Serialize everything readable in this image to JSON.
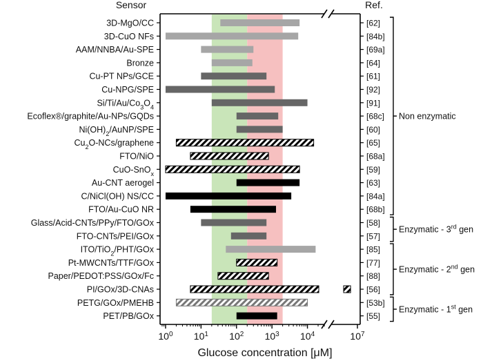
{
  "chart_data": {
    "type": "bar",
    "orientation": "horizontal-range",
    "headers": {
      "sensor": "Sensor",
      "ref": "Ref."
    },
    "xlabel": "Glucose concentration [μM]",
    "xscale": "log",
    "xlim": [
      0.7,
      10000000
    ],
    "axis_break": [
      30000,
      700000
    ],
    "x_ticks": [
      {
        "base": "10",
        "exp": "0",
        "value": 1
      },
      {
        "base": "10",
        "exp": "1",
        "value": 10
      },
      {
        "base": "10",
        "exp": "2",
        "value": 100
      },
      {
        "base": "10",
        "exp": "3",
        "value": 1000
      },
      {
        "base": "10",
        "exp": "4",
        "value": 10000
      },
      {
        "base": "10",
        "exp": "7",
        "value": 10000000
      }
    ],
    "bands": [
      {
        "from": 20,
        "to": 200,
        "color": "#c9e5b9"
      },
      {
        "from": 200,
        "to": 2000,
        "color": "#f6c0c0"
      }
    ],
    "styles": {
      "lightgray": {
        "fill": "#a6a6a6"
      },
      "darkgray": {
        "fill": "#666666"
      },
      "black": {
        "fill": "#000000"
      },
      "hatch-black": {
        "pattern": "hatch",
        "stroke": "#000000"
      },
      "hatch-gray": {
        "pattern": "hatch",
        "stroke": "#777777"
      }
    },
    "rows": [
      {
        "label": "3D-MgO/CC",
        "ref": "[62]",
        "min": 35,
        "max": 6000,
        "style": "lightgray"
      },
      {
        "label": "3D-CuO NFs",
        "ref": "[84b]",
        "min": 1,
        "max": 5500,
        "style": "lightgray"
      },
      {
        "label": "AAM/NNBA/Au-SPE",
        "ref": "[69a]",
        "min": 10,
        "max": 300,
        "style": "lightgray"
      },
      {
        "label": "Bronze",
        "ref": "[64]",
        "min": 20,
        "max": 280,
        "style": "lightgray"
      },
      {
        "label": "Cu-PT NPs/GCE",
        "ref": "[61]",
        "min": 10,
        "max": 700,
        "style": "darkgray"
      },
      {
        "label": "Cu-NPG/SPE",
        "ref": "[92]",
        "min": 1,
        "max": 1200,
        "style": "darkgray"
      },
      {
        "label_parts": [
          [
            "Si/Ti/Au/Co",
            ""
          ],
          [
            "3",
            "sub"
          ],
          [
            "O",
            ""
          ],
          [
            "4",
            "sub"
          ]
        ],
        "ref": "[91]",
        "min": 20,
        "max": 10000,
        "style": "darkgray"
      },
      {
        "label": "Ecoflex®/graphite/Au-NPs/GQDs",
        "ref": "[68c]",
        "min": 100,
        "max": 1500,
        "style": "darkgray"
      },
      {
        "label_parts": [
          [
            "Ni(OH)",
            ""
          ],
          [
            "2",
            "sub"
          ],
          [
            "/AuNP/SPE",
            ""
          ]
        ],
        "ref": "[60]",
        "min": 100,
        "max": 2000,
        "style": "darkgray"
      },
      {
        "label_parts": [
          [
            "Cu",
            ""
          ],
          [
            "2",
            "sub"
          ],
          [
            "O-NCs/graphene",
            ""
          ]
        ],
        "ref": "[65]",
        "min": 2,
        "max": 15000,
        "style": "hatch-black"
      },
      {
        "label": "FTO/NiO",
        "ref": "[68a]",
        "min": 5,
        "max": 800,
        "style": "hatch-black"
      },
      {
        "label_parts": [
          [
            "CuO-SnO",
            ""
          ],
          [
            "x",
            "sub"
          ]
        ],
        "ref": "[59]",
        "min": 1,
        "max": 6000,
        "style": "hatch-black"
      },
      {
        "label": "Au-CNT aerogel",
        "ref": "[63]",
        "min": 100,
        "max": 6000,
        "style": "black"
      },
      {
        "label": "C/NiCl(OH) NS/CC",
        "ref": "[84a]",
        "min": 1,
        "max": 3500,
        "style": "black"
      },
      {
        "label": "FTO/Au-CuO NR",
        "ref": "[68b]",
        "min": 5,
        "max": 1300,
        "style": "black"
      },
      {
        "label": "Glass/Acid-CNTs/PPy/FTO/GOx",
        "ref": "[58]",
        "min": 10,
        "max": 700,
        "style": "darkgray"
      },
      {
        "label": "FTO-CNTs/PEI/GOx",
        "ref": "[57]",
        "min": 70,
        "max": 700,
        "style": "darkgray"
      },
      {
        "label_parts": [
          [
            "ITO/TiO",
            ""
          ],
          [
            "2",
            "sub"
          ],
          [
            "/PHT/GOx",
            ""
          ]
        ],
        "ref": "[85]",
        "min": 50,
        "max": 17000,
        "style": "lightgray"
      },
      {
        "label": "Pt-MWCNTs/TTF/GOx",
        "ref": "[77]",
        "min": 100,
        "max": 1400,
        "style": "hatch-black"
      },
      {
        "label": "Paper/PEDOT:PSS/GOx/Fc",
        "ref": "[88]",
        "min": 30,
        "max": 800,
        "style": "hatch-black"
      },
      {
        "label": "PI/GOx/3D-CNAs",
        "ref": "[56]",
        "min": 5,
        "max": 5000000,
        "style": "hatch-black"
      },
      {
        "label": "PETG/GOx/PMEHB",
        "ref": "[53b]",
        "min": 2,
        "max": 10000,
        "style": "hatch-gray"
      },
      {
        "label": "PET/PB/GOx",
        "ref": "[55]",
        "min": 100,
        "max": 1400,
        "style": "black"
      }
    ],
    "groups": [
      {
        "label_parts": [
          [
            "Non enzymatic",
            ""
          ]
        ],
        "first": 0,
        "last": 14
      },
      {
        "label_parts": [
          [
            "Enzymatic - 3",
            ""
          ],
          [
            "rd",
            "sup"
          ],
          [
            " gen",
            ""
          ]
        ],
        "first": 15,
        "last": 16
      },
      {
        "label_parts": [
          [
            "Enzymatic - 2",
            ""
          ],
          [
            "nd",
            "sup"
          ],
          [
            " gen",
            ""
          ]
        ],
        "first": 17,
        "last": 20
      },
      {
        "label_parts": [
          [
            "Enzymatic - 1",
            ""
          ],
          [
            "st",
            "sup"
          ],
          [
            " gen",
            ""
          ]
        ],
        "first": 21,
        "last": 22
      }
    ]
  }
}
